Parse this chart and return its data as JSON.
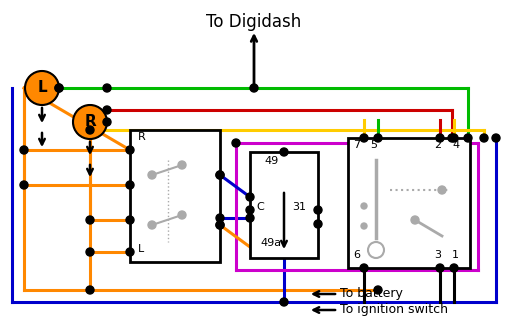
{
  "bg_color": "#ffffff",
  "title": "To Digidash",
  "label_battery": "To battery",
  "label_ignition": "To ignition switch",
  "colors": {
    "green": "#00bb00",
    "red": "#cc0000",
    "yellow": "#ffcc00",
    "blue": "#0000cc",
    "magenta": "#cc00cc",
    "orange": "#ff8800",
    "black": "#000000",
    "gray": "#aaaaaa"
  },
  "figsize": [
    5.08,
    3.35
  ],
  "dpi": 100
}
